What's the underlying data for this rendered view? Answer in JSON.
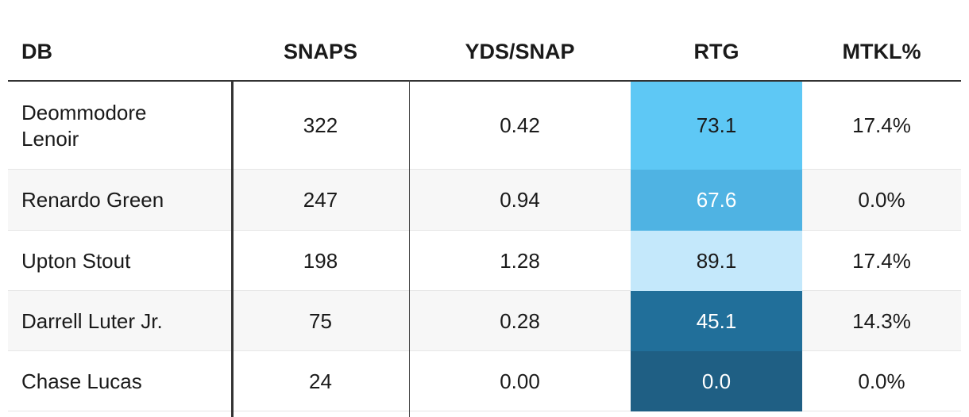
{
  "table": {
    "columns": [
      "DB",
      "SNAPS",
      "YDS/SNAP",
      "RTG",
      "MTKL%"
    ],
    "rows": [
      [
        "Deommodore Lenoir",
        "322",
        "0.42",
        "73.1",
        "17.4%"
      ],
      [
        "Renardo Green",
        "247",
        "0.94",
        "67.6",
        "0.0%"
      ],
      [
        "Upton Stout",
        "198",
        "1.28",
        "89.1",
        "17.4%"
      ],
      [
        "Darrell Luter Jr.",
        "75",
        "0.28",
        "45.1",
        "14.3%"
      ],
      [
        "Chase Lucas",
        "24",
        "0.00",
        "0.0",
        "0.0%"
      ]
    ],
    "highlight": {
      "column": 3,
      "colors": [
        "#5ec8f5",
        "#4fb3e3",
        "#c4e8fb",
        "#216f9a",
        "#1f5f84"
      ],
      "text_colors": [
        "#1a1a1a",
        "#ffffff",
        "#1a1a1a",
        "#ffffff",
        "#ffffff"
      ]
    }
  }
}
